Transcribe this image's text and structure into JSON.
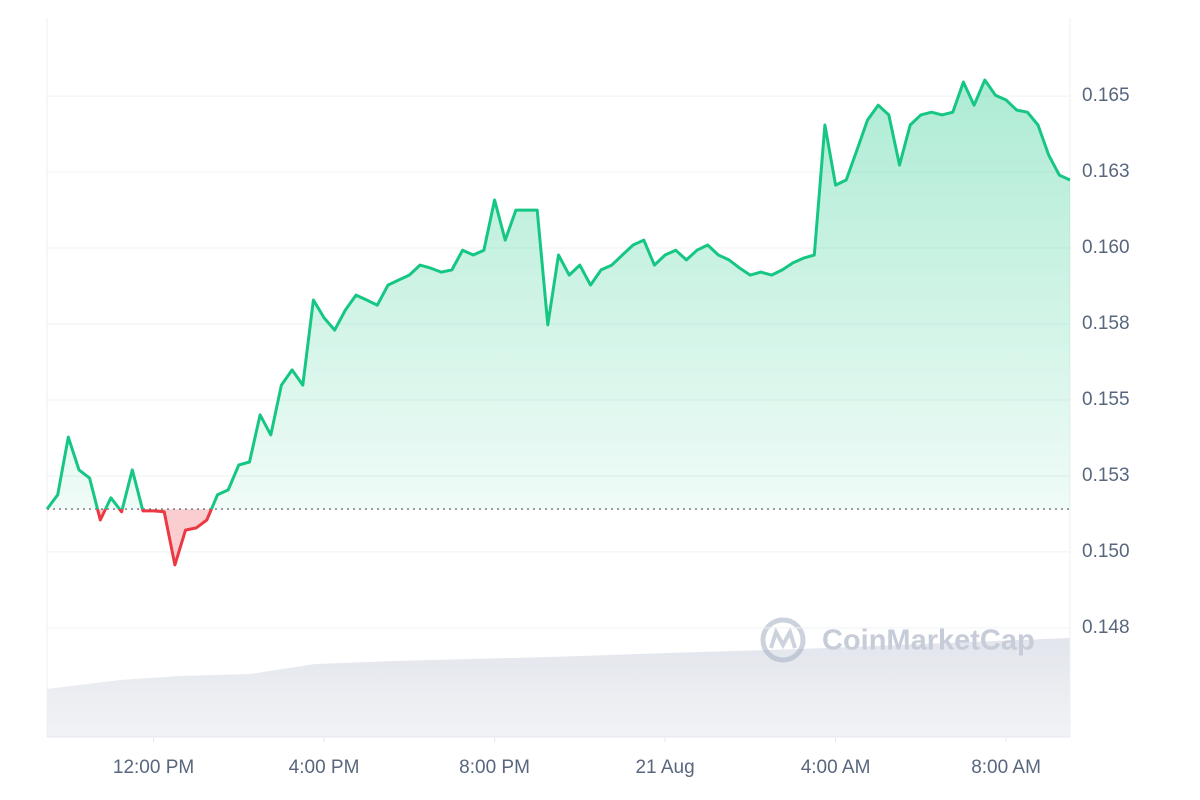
{
  "chart_data": {
    "type": "line",
    "values": [
      0.15141,
      0.15188,
      0.15378,
      0.1527,
      0.15243,
      0.15105,
      0.15178,
      0.15132,
      0.1527,
      0.15135,
      0.15135,
      0.15132,
      0.14957,
      0.15072,
      0.15079,
      0.15105,
      0.15188,
      0.15204,
      0.15286,
      0.15296,
      0.15451,
      0.15385,
      0.15549,
      0.15599,
      0.15549,
      0.15829,
      0.1577,
      0.1573,
      0.15796,
      0.15845,
      0.15829,
      0.15812,
      0.15878,
      0.15895,
      0.15911,
      0.15944,
      0.15934,
      0.15921,
      0.15928,
      0.15993,
      0.15977,
      0.15993,
      0.16158,
      0.16026,
      0.16125,
      0.16125,
      0.16125,
      0.15747,
      0.15977,
      0.15911,
      0.15944,
      0.15878,
      0.15928,
      0.15944,
      0.15977,
      0.1601,
      0.16026,
      0.15944,
      0.15977,
      0.15993,
      0.15961,
      0.15993,
      0.1601,
      0.15977,
      0.15961,
      0.15934,
      0.15911,
      0.15921,
      0.15911,
      0.15928,
      0.15951,
      0.15967,
      0.15977,
      0.16405,
      0.16207,
      0.16224,
      0.16322,
      0.16421,
      0.1647,
      0.16438,
      0.16273,
      0.16405,
      0.16438,
      0.16447,
      0.16438,
      0.16447,
      0.16546,
      0.1647,
      0.16553,
      0.16503,
      0.16487,
      0.16454,
      0.16447,
      0.16405,
      0.16306,
      0.1624,
      0.16224
    ],
    "baseline": 0.15141,
    "up_color": "#16c784",
    "down_color": "#ea3943",
    "xlim": [
      0,
      96
    ],
    "xticks": [
      {
        "value": 10,
        "label": "12:00 PM"
      },
      {
        "value": 26,
        "label": "4:00 PM"
      },
      {
        "value": 42,
        "label": "8:00 PM"
      },
      {
        "value": 58,
        "label": "21 Aug"
      },
      {
        "value": 74,
        "label": "4:00 AM"
      },
      {
        "value": 90,
        "label": "8:00 AM"
      }
    ],
    "ylim": [
      0.14391,
      0.16757
    ],
    "yticks": [
      {
        "value": 0.1475,
        "label": "0.148"
      },
      {
        "value": 0.15,
        "label": "0.150"
      },
      {
        "value": 0.1525,
        "label": "0.153"
      },
      0.155,
      {
        "value": 0.1575,
        "label": "0.158"
      },
      {
        "value": 0.16,
        "label": "0.160"
      },
      {
        "value": 0.1625,
        "label": "0.163"
      },
      0.165
    ],
    "grid": true,
    "watermark": "CoinMarketCap"
  }
}
